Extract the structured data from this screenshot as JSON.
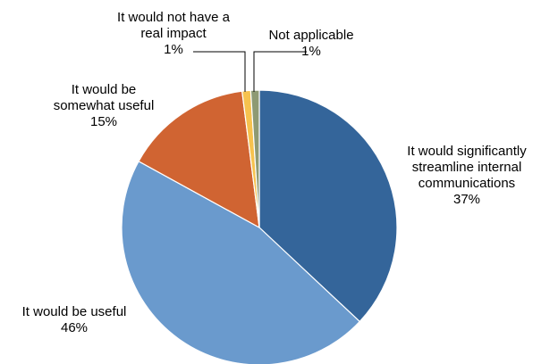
{
  "chart_data": {
    "type": "pie",
    "slices": [
      {
        "label_lines": [
          "It would significantly",
          "streamline internal",
          "communications"
        ],
        "percent_label": "37%",
        "value": 37,
        "color": "#34659A"
      },
      {
        "label_lines": [
          "It would be useful"
        ],
        "percent_label": "46%",
        "value": 46,
        "color": "#6A9ACD"
      },
      {
        "label_lines": [
          "It would be",
          "somewhat useful"
        ],
        "percent_label": "15%",
        "value": 15,
        "color": "#D06432"
      },
      {
        "label_lines": [
          "It would not have a",
          "real impact"
        ],
        "percent_label": "1%",
        "value": 1,
        "color": "#F6C24E"
      },
      {
        "label_lines": [
          "Not applicable"
        ],
        "percent_label": "1%",
        "value": 1,
        "color": "#8E9A73"
      }
    ],
    "start_angle_deg": 0,
    "direction": "clockwise",
    "legend": "none"
  }
}
